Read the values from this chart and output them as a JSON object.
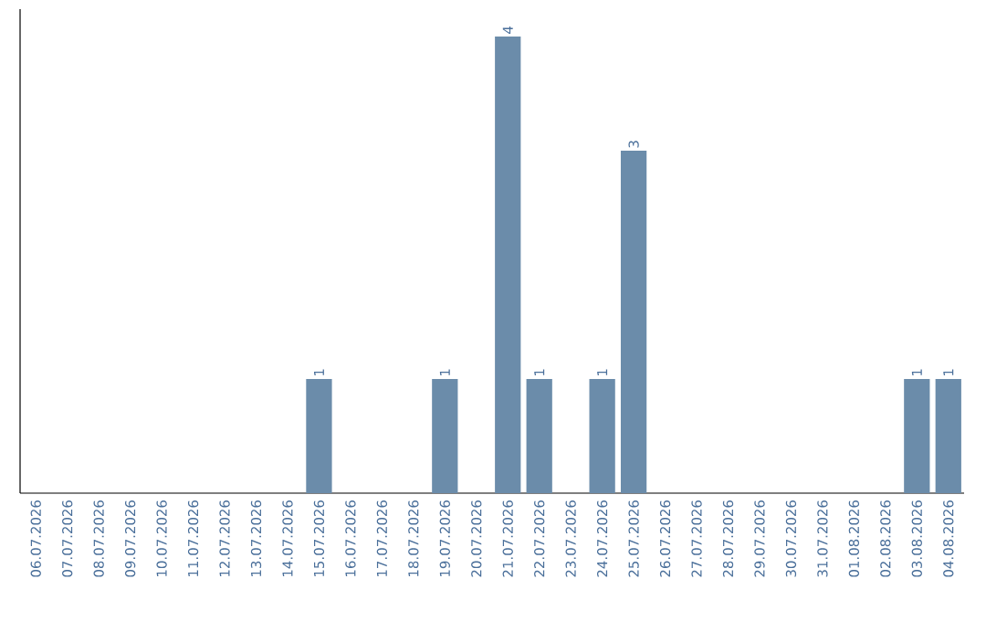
{
  "chart_data": {
    "type": "bar",
    "categories": [
      "06.07.2026",
      "07.07.2026",
      "08.07.2026",
      "09.07.2026",
      "10.07.2026",
      "11.07.2026",
      "12.07.2026",
      "13.07.2026",
      "14.07.2026",
      "15.07.2026",
      "16.07.2026",
      "17.07.2026",
      "18.07.2026",
      "19.07.2026",
      "20.07.2026",
      "21.07.2026",
      "22.07.2026",
      "23.07.2026",
      "24.07.2026",
      "25.07.2026",
      "26.07.2026",
      "27.07.2026",
      "28.07.2026",
      "29.07.2026",
      "30.07.2026",
      "31.07.2026",
      "01.08.2026",
      "02.08.2026",
      "03.08.2026",
      "04.08.2026"
    ],
    "values": [
      0,
      0,
      0,
      0,
      0,
      0,
      0,
      0,
      0,
      1,
      0,
      0,
      0,
      1,
      0,
      4,
      1,
      0,
      1,
      3,
      0,
      0,
      0,
      0,
      0,
      0,
      0,
      0,
      1,
      1
    ],
    "value_labels": [
      null,
      null,
      null,
      null,
      null,
      null,
      null,
      null,
      null,
      "1",
      null,
      null,
      null,
      "1",
      null,
      "4",
      "1",
      null,
      "1",
      "3",
      null,
      null,
      null,
      null,
      null,
      null,
      null,
      null,
      "1",
      "1"
    ],
    "color": "#6b8caa"
  }
}
